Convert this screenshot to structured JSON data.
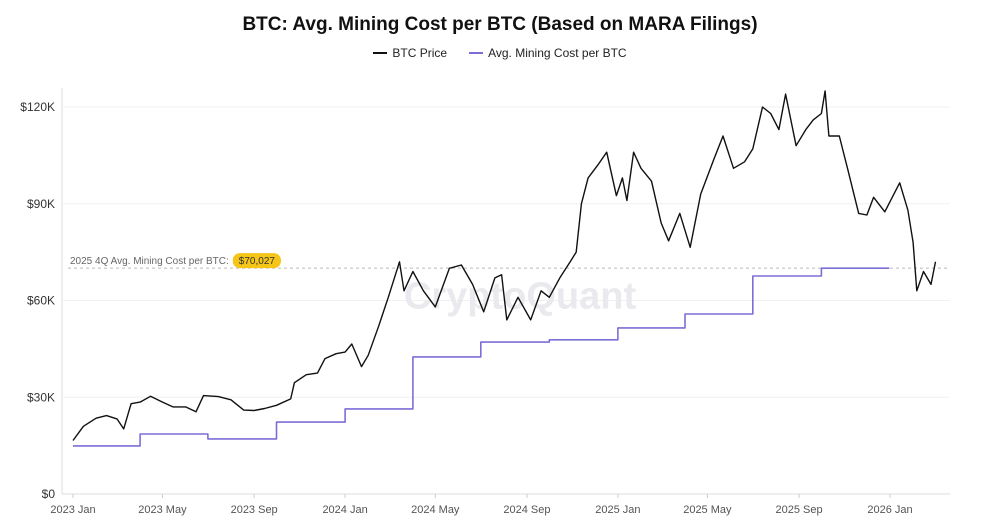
{
  "chart_data": {
    "type": "line",
    "title": "BTC: Avg. Mining Cost per BTC (Based on MARA Filings)",
    "watermark": "CryptoQuant",
    "legend_placement": "top-center",
    "grid": "horizontal",
    "ylim": [
      0,
      125000
    ],
    "yticks": [
      0,
      30000,
      60000,
      90000,
      120000
    ],
    "ytick_labels": [
      "$0",
      "$30K",
      "$60K",
      "$90K",
      "$120K"
    ],
    "xlim": [
      "2023-01-01",
      "2026-03-10"
    ],
    "xticks": [
      "2023-01-01",
      "2023-05-01",
      "2023-09-01",
      "2024-01-01",
      "2024-05-01",
      "2024-09-01",
      "2025-01-01",
      "2025-05-01",
      "2025-09-01",
      "2026-01-01"
    ],
    "xtick_labels": [
      "2023 Jan",
      "2023 May",
      "2023 Sep",
      "2024 Jan",
      "2024 May",
      "2024 Sep",
      "2025 Jan",
      "2025 May",
      "2025 Sep",
      "2026 Jan"
    ],
    "annotation": {
      "label": "2025 4Q Avg. Mining Cost per BTC",
      "value_label": "$70,027",
      "value": 70027,
      "color": "#f5c518"
    },
    "series": [
      {
        "name": "BTC Price",
        "color": "#111111",
        "points": [
          [
            "2023-01-01",
            16600
          ],
          [
            "2023-01-15",
            21000
          ],
          [
            "2023-02-01",
            23500
          ],
          [
            "2023-02-15",
            24300
          ],
          [
            "2023-03-01",
            23300
          ],
          [
            "2023-03-10",
            20200
          ],
          [
            "2023-03-20",
            28000
          ],
          [
            "2023-04-01",
            28500
          ],
          [
            "2023-04-15",
            30300
          ],
          [
            "2023-05-01",
            28500
          ],
          [
            "2023-05-15",
            27000
          ],
          [
            "2023-06-01",
            27000
          ],
          [
            "2023-06-15",
            25500
          ],
          [
            "2023-06-25",
            30500
          ],
          [
            "2023-07-15",
            30200
          ],
          [
            "2023-08-01",
            29200
          ],
          [
            "2023-08-18",
            26000
          ],
          [
            "2023-09-01",
            25900
          ],
          [
            "2023-09-15",
            26500
          ],
          [
            "2023-10-01",
            27500
          ],
          [
            "2023-10-20",
            29500
          ],
          [
            "2023-10-25",
            34500
          ],
          [
            "2023-11-10",
            37000
          ],
          [
            "2023-11-25",
            37500
          ],
          [
            "2023-12-05",
            42000
          ],
          [
            "2023-12-20",
            43500
          ],
          [
            "2024-01-01",
            44000
          ],
          [
            "2024-01-10",
            46500
          ],
          [
            "2024-01-23",
            39500
          ],
          [
            "2024-02-01",
            43000
          ],
          [
            "2024-02-15",
            52000
          ],
          [
            "2024-02-28",
            61000
          ],
          [
            "2024-03-14",
            72000
          ],
          [
            "2024-03-20",
            63000
          ],
          [
            "2024-04-01",
            69000
          ],
          [
            "2024-04-15",
            63000
          ],
          [
            "2024-05-01",
            58000
          ],
          [
            "2024-05-20",
            70000
          ],
          [
            "2024-06-05",
            71000
          ],
          [
            "2024-06-20",
            65000
          ],
          [
            "2024-07-05",
            56500
          ],
          [
            "2024-07-20",
            67000
          ],
          [
            "2024-07-29",
            68000
          ],
          [
            "2024-08-05",
            54000
          ],
          [
            "2024-08-20",
            61000
          ],
          [
            "2024-09-06",
            54000
          ],
          [
            "2024-09-20",
            63000
          ],
          [
            "2024-10-01",
            61000
          ],
          [
            "2024-10-15",
            67000
          ],
          [
            "2024-10-29",
            72000
          ],
          [
            "2024-11-06",
            75000
          ],
          [
            "2024-11-13",
            90000
          ],
          [
            "2024-11-22",
            98000
          ],
          [
            "2024-12-05",
            102000
          ],
          [
            "2024-12-17",
            106000
          ],
          [
            "2024-12-30",
            92500
          ],
          [
            "2025-01-07",
            98000
          ],
          [
            "2025-01-13",
            91000
          ],
          [
            "2025-01-22",
            106000
          ],
          [
            "2025-02-01",
            101000
          ],
          [
            "2025-02-15",
            97000
          ],
          [
            "2025-02-28",
            84000
          ],
          [
            "2025-03-10",
            78500
          ],
          [
            "2025-03-25",
            87000
          ],
          [
            "2025-04-08",
            76500
          ],
          [
            "2025-04-22",
            93000
          ],
          [
            "2025-05-10",
            104000
          ],
          [
            "2025-05-22",
            111000
          ],
          [
            "2025-06-05",
            101000
          ],
          [
            "2025-06-20",
            103000
          ],
          [
            "2025-07-01",
            107000
          ],
          [
            "2025-07-14",
            120000
          ],
          [
            "2025-07-25",
            118000
          ],
          [
            "2025-08-05",
            113000
          ],
          [
            "2025-08-14",
            124000
          ],
          [
            "2025-08-28",
            108000
          ],
          [
            "2025-09-10",
            113000
          ],
          [
            "2025-09-20",
            116000
          ],
          [
            "2025-10-01",
            118000
          ],
          [
            "2025-10-06",
            125000
          ],
          [
            "2025-10-11",
            111000
          ],
          [
            "2025-10-25",
            111000
          ],
          [
            "2025-11-05",
            101000
          ],
          [
            "2025-11-20",
            87000
          ],
          [
            "2025-12-01",
            86500
          ],
          [
            "2025-12-10",
            92000
          ],
          [
            "2025-12-25",
            87500
          ],
          [
            "2026-01-14",
            96500
          ],
          [
            "2026-01-25",
            88000
          ],
          [
            "2026-02-01",
            78000
          ],
          [
            "2026-02-06",
            63000
          ],
          [
            "2026-02-15",
            69000
          ],
          [
            "2026-02-25",
            65000
          ],
          [
            "2026-03-03",
            72000
          ]
        ]
      },
      {
        "name": "Avg. Mining Cost per BTC",
        "color": "#7b6fd6",
        "step": true,
        "points": [
          [
            "2023-01-01",
            14900
          ],
          [
            "2023-04-01",
            18600
          ],
          [
            "2023-07-01",
            17100
          ],
          [
            "2023-10-01",
            22300
          ],
          [
            "2024-01-01",
            26400
          ],
          [
            "2024-04-01",
            42500
          ],
          [
            "2024-07-01",
            47100
          ],
          [
            "2024-10-01",
            47800
          ],
          [
            "2025-01-01",
            51500
          ],
          [
            "2025-04-01",
            55800
          ],
          [
            "2025-07-01",
            67600
          ],
          [
            "2025-10-01",
            70027
          ],
          [
            "2025-12-31",
            70027
          ]
        ]
      }
    ]
  }
}
